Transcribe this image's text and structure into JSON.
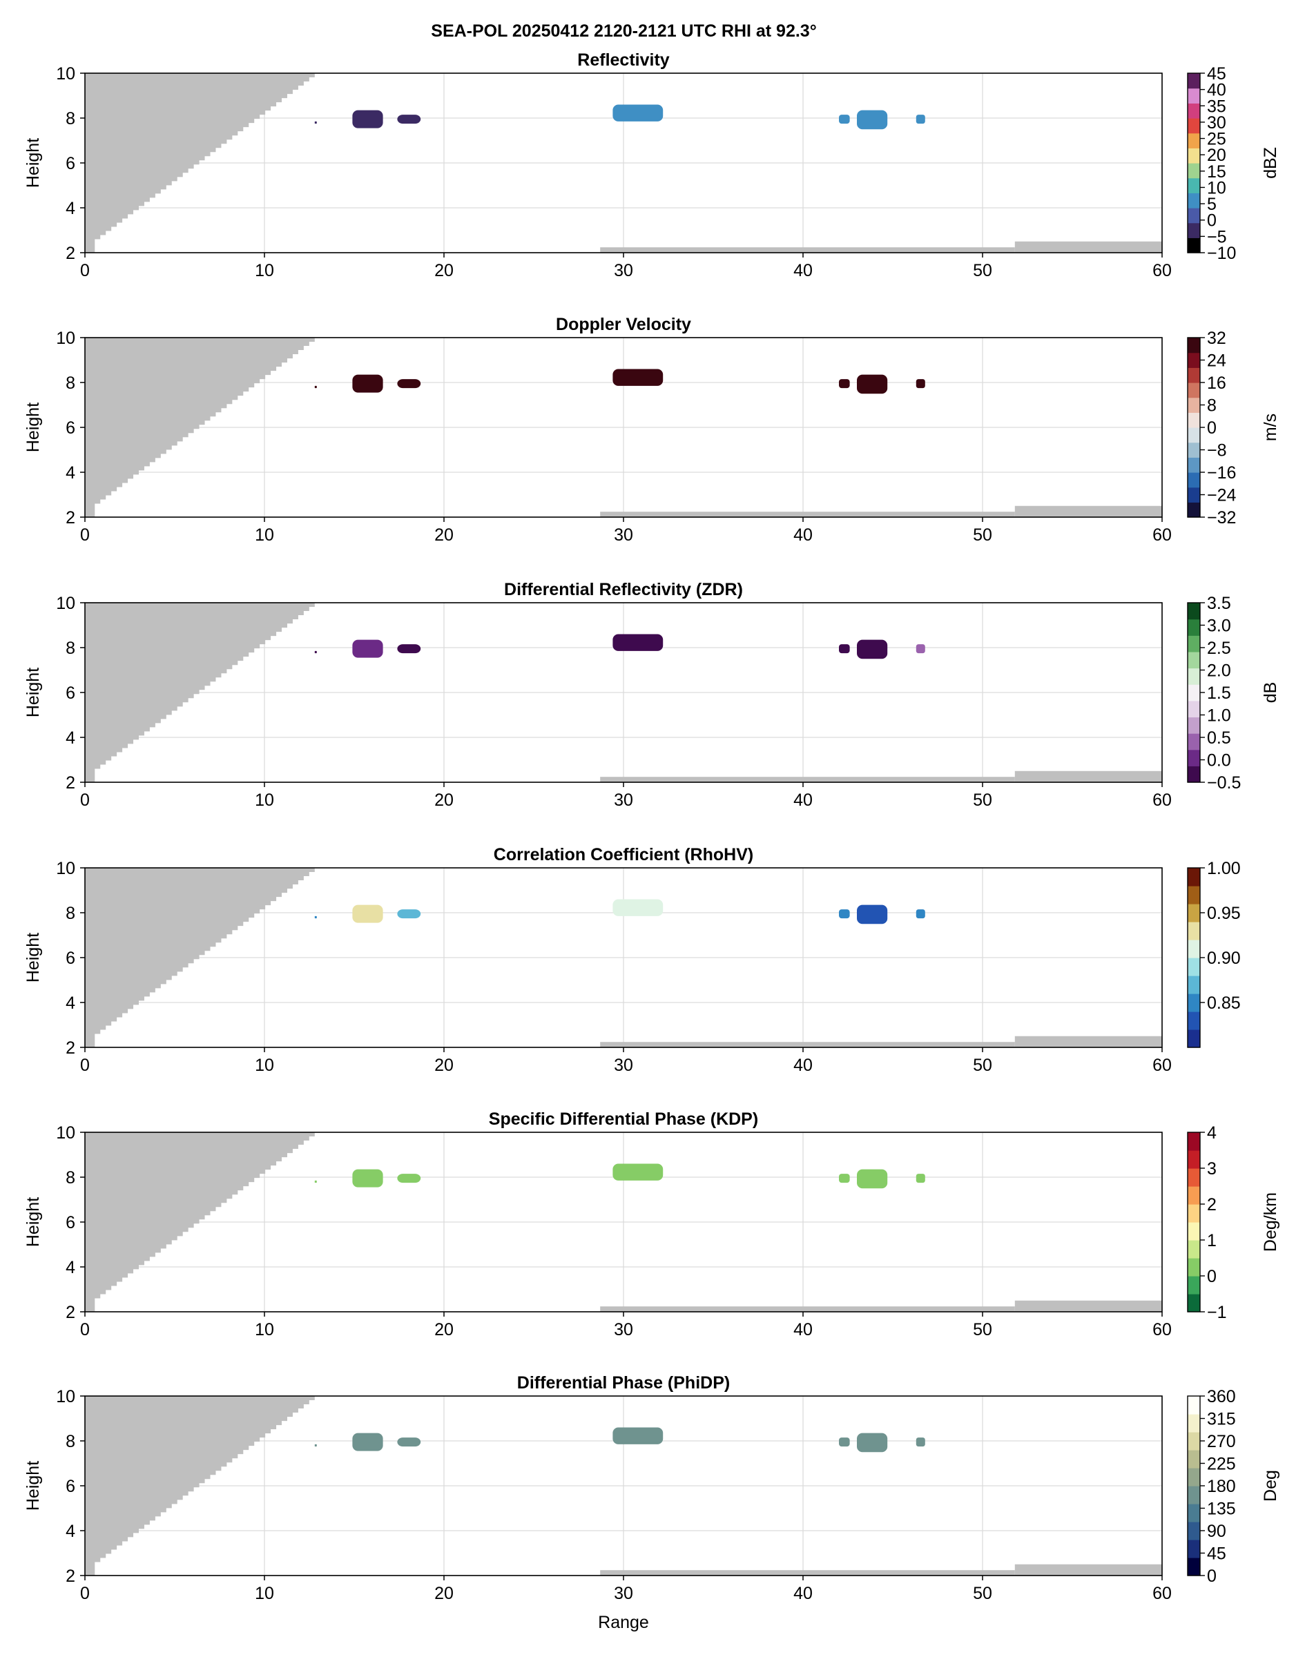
{
  "figure_title": "SEA-POL 20250412 2120-2121 UTC RHI at 92.3°",
  "colors": {
    "mask_gray": "#bfbfbf",
    "grid": "#dcdcdc",
    "axis": "#000000"
  },
  "chart_data": [
    {
      "type": "heatmap",
      "title": "Reflectivity",
      "xlabel": "",
      "ylabel": "Height",
      "xlim": [
        0,
        60
      ],
      "ylim": [
        2,
        10
      ],
      "xticks": [
        0,
        10,
        20,
        30,
        40,
        50,
        60
      ],
      "yticks": [
        2,
        4,
        6,
        8,
        10
      ],
      "grid": true,
      "colorbar": {
        "label": "dBZ",
        "range": [
          -10,
          45
        ],
        "ticks": [
          -10,
          -5,
          0,
          5,
          10,
          15,
          20,
          25,
          30,
          35,
          40,
          45
        ],
        "colormap": [
          "#000000",
          "#3b2a63",
          "#4a5aa8",
          "#3f8fc4",
          "#49b7b0",
          "#9fd38f",
          "#f3e08e",
          "#f0a44a",
          "#e0463e",
          "#d13f7e",
          "#d98bd0",
          "#5c1f5e"
        ]
      },
      "echoes": [
        {
          "range_km": [
            12.8,
            12.9
          ],
          "height_km": [
            7.75,
            7.85
          ],
          "value": -2
        },
        {
          "range_km": [
            14.9,
            16.6
          ],
          "height_km": [
            7.55,
            8.35
          ],
          "value": -1
        },
        {
          "range_km": [
            17.4,
            18.7
          ],
          "height_km": [
            7.75,
            8.15
          ],
          "value": -3
        },
        {
          "range_km": [
            29.4,
            32.2
          ],
          "height_km": [
            7.85,
            8.6
          ],
          "value": 5
        },
        {
          "range_km": [
            42.0,
            42.6
          ],
          "height_km": [
            7.75,
            8.15
          ],
          "value": 6
        },
        {
          "range_km": [
            43.0,
            44.7
          ],
          "height_km": [
            7.5,
            8.35
          ],
          "value": 5
        },
        {
          "range_km": [
            46.3,
            46.8
          ],
          "height_km": [
            7.75,
            8.15
          ],
          "value": 6
        }
      ]
    },
    {
      "type": "heatmap",
      "title": "Doppler Velocity",
      "xlabel": "",
      "ylabel": "Height",
      "xlim": [
        0,
        60
      ],
      "ylim": [
        2,
        10
      ],
      "xticks": [
        0,
        10,
        20,
        30,
        40,
        50,
        60
      ],
      "yticks": [
        2,
        4,
        6,
        8,
        10
      ],
      "grid": true,
      "colorbar": {
        "label": "m/s",
        "range": [
          -32,
          32
        ],
        "ticks": [
          -32,
          -24,
          -16,
          -8,
          0,
          8,
          16,
          24,
          32
        ],
        "colormap": [
          "#14123a",
          "#1a3d8f",
          "#2b6cb3",
          "#5d97c4",
          "#9fbfd1",
          "#d7e1e6",
          "#f0e2dc",
          "#e7b3a0",
          "#cf7560",
          "#b03a35",
          "#7a0d1e",
          "#3a0610"
        ]
      },
      "echoes": [
        {
          "range_km": [
            12.8,
            12.9
          ],
          "height_km": [
            7.75,
            7.85
          ],
          "value": 28
        },
        {
          "range_km": [
            14.9,
            16.6
          ],
          "height_km": [
            7.55,
            8.35
          ],
          "value": 28
        },
        {
          "range_km": [
            17.4,
            18.7
          ],
          "height_km": [
            7.75,
            8.15
          ],
          "value": 28
        },
        {
          "range_km": [
            29.4,
            32.2
          ],
          "height_km": [
            7.85,
            8.6
          ],
          "value": 29
        },
        {
          "range_km": [
            42.0,
            42.6
          ],
          "height_km": [
            7.75,
            8.15
          ],
          "value": 28
        },
        {
          "range_km": [
            43.0,
            44.7
          ],
          "height_km": [
            7.5,
            8.35
          ],
          "value": 29
        },
        {
          "range_km": [
            46.3,
            46.8
          ],
          "height_km": [
            7.75,
            8.15
          ],
          "value": 28
        }
      ]
    },
    {
      "type": "heatmap",
      "title": "Differential Reflectivity (ZDR)",
      "xlabel": "",
      "ylabel": "Height",
      "xlim": [
        0,
        60
      ],
      "ylim": [
        2,
        10
      ],
      "xticks": [
        0,
        10,
        20,
        30,
        40,
        50,
        60
      ],
      "yticks": [
        2,
        4,
        6,
        8,
        10
      ],
      "grid": true,
      "colorbar": {
        "label": "dB",
        "range": [
          -0.5,
          3.5
        ],
        "ticks": [
          -0.5,
          0.0,
          0.5,
          1.0,
          1.5,
          2.0,
          2.5,
          3.0,
          3.5
        ],
        "colormap": [
          "#3e0a4e",
          "#6b2a86",
          "#9a62ad",
          "#c3a0cc",
          "#e4d3e8",
          "#f5f1f5",
          "#d8eed6",
          "#a3d79d",
          "#5fae62",
          "#2a7f3b",
          "#0b4a1d"
        ]
      },
      "echoes": [
        {
          "range_km": [
            12.8,
            12.9
          ],
          "height_km": [
            7.75,
            7.85
          ],
          "value": -0.2
        },
        {
          "range_km": [
            14.9,
            16.6
          ],
          "height_km": [
            7.55,
            8.35
          ],
          "value": -0.1
        },
        {
          "range_km": [
            17.4,
            18.7
          ],
          "height_km": [
            7.75,
            8.15
          ],
          "value": -0.2
        },
        {
          "range_km": [
            29.4,
            32.2
          ],
          "height_km": [
            7.85,
            8.6
          ],
          "value": -0.2
        },
        {
          "range_km": [
            42.0,
            42.6
          ],
          "height_km": [
            7.75,
            8.15
          ],
          "value": -0.3
        },
        {
          "range_km": [
            43.0,
            44.7
          ],
          "height_km": [
            7.5,
            8.35
          ],
          "value": -0.3
        },
        {
          "range_km": [
            46.3,
            46.8
          ],
          "height_km": [
            7.75,
            8.15
          ],
          "value": 0.3
        }
      ]
    },
    {
      "type": "heatmap",
      "title": "Correlation Coefficient (RhoHV)",
      "xlabel": "",
      "ylabel": "Height",
      "xlim": [
        0,
        60
      ],
      "ylim": [
        2,
        10
      ],
      "xticks": [
        0,
        10,
        20,
        30,
        40,
        50,
        60
      ],
      "yticks": [
        2,
        4,
        6,
        8,
        10
      ],
      "grid": true,
      "colorbar": {
        "label": "",
        "range": [
          0.8,
          1.0
        ],
        "ticks": [
          0.85,
          0.9,
          0.95,
          1.0
        ],
        "colormap": [
          "#1a2f8f",
          "#2254b3",
          "#2f86c4",
          "#5cb7d6",
          "#9fe0e4",
          "#dff3e4",
          "#e8e0a4",
          "#c9a443",
          "#a05e16",
          "#6b1707"
        ]
      },
      "echoes": [
        {
          "range_km": [
            12.8,
            12.9
          ],
          "height_km": [
            7.75,
            7.85
          ],
          "value": 0.86
        },
        {
          "range_km": [
            14.9,
            16.6
          ],
          "height_km": [
            7.55,
            8.35
          ],
          "value": 0.92
        },
        {
          "range_km": [
            17.4,
            18.7
          ],
          "height_km": [
            7.75,
            8.15
          ],
          "value": 0.87
        },
        {
          "range_km": [
            29.4,
            32.2
          ],
          "height_km": [
            7.85,
            8.6
          ],
          "value": 0.9
        },
        {
          "range_km": [
            42.0,
            42.6
          ],
          "height_km": [
            7.75,
            8.15
          ],
          "value": 0.85
        },
        {
          "range_km": [
            43.0,
            44.7
          ],
          "height_km": [
            7.5,
            8.35
          ],
          "value": 0.84
        },
        {
          "range_km": [
            46.3,
            46.8
          ],
          "height_km": [
            7.75,
            8.15
          ],
          "value": 0.85
        }
      ]
    },
    {
      "type": "heatmap",
      "title": "Specific Differential Phase (KDP)",
      "xlabel": "",
      "ylabel": "Height",
      "xlim": [
        0,
        60
      ],
      "ylim": [
        2,
        10
      ],
      "xticks": [
        0,
        10,
        20,
        30,
        40,
        50,
        60
      ],
      "yticks": [
        2,
        4,
        6,
        8,
        10
      ],
      "grid": true,
      "colorbar": {
        "label": "Deg/km",
        "range": [
          -1,
          4
        ],
        "ticks": [
          -1,
          0,
          1,
          2,
          3,
          4
        ],
        "colormap": [
          "#0b6b3a",
          "#3aa65a",
          "#86cc66",
          "#c9e88a",
          "#fbf6b4",
          "#fdd383",
          "#f79d52",
          "#e75a36",
          "#c41e26",
          "#9c0824"
        ]
      },
      "echoes": [
        {
          "range_km": [
            12.8,
            12.9
          ],
          "height_km": [
            7.75,
            7.85
          ],
          "value": 0
        },
        {
          "range_km": [
            14.9,
            16.6
          ],
          "height_km": [
            7.55,
            8.35
          ],
          "value": 0
        },
        {
          "range_km": [
            17.4,
            18.7
          ],
          "height_km": [
            7.75,
            8.15
          ],
          "value": 0
        },
        {
          "range_km": [
            29.4,
            32.2
          ],
          "height_km": [
            7.85,
            8.6
          ],
          "value": 0
        },
        {
          "range_km": [
            42.0,
            42.6
          ],
          "height_km": [
            7.75,
            8.15
          ],
          "value": 0
        },
        {
          "range_km": [
            43.0,
            44.7
          ],
          "height_km": [
            7.5,
            8.35
          ],
          "value": 0
        },
        {
          "range_km": [
            46.3,
            46.8
          ],
          "height_km": [
            7.75,
            8.15
          ],
          "value": 0
        }
      ]
    },
    {
      "type": "heatmap",
      "title": "Differential Phase (PhiDP)",
      "xlabel": "Range",
      "ylabel": "Height",
      "xlim": [
        0,
        60
      ],
      "ylim": [
        2,
        10
      ],
      "xticks": [
        0,
        10,
        20,
        30,
        40,
        50,
        60
      ],
      "yticks": [
        2,
        4,
        6,
        8,
        10
      ],
      "grid": true,
      "colorbar": {
        "label": "Deg",
        "range": [
          0,
          360
        ],
        "ticks": [
          0,
          45,
          90,
          135,
          180,
          225,
          270,
          315,
          360
        ],
        "colormap": [
          "#00003c",
          "#1a2f7a",
          "#2f5a8e",
          "#4a7c92",
          "#6f938f",
          "#94a78c",
          "#b9bd90",
          "#dcd9a5",
          "#f4f1cc",
          "#fffff8"
        ]
      },
      "echoes": [
        {
          "range_km": [
            12.8,
            12.9
          ],
          "height_km": [
            7.75,
            7.85
          ],
          "value": 160
        },
        {
          "range_km": [
            14.9,
            16.6
          ],
          "height_km": [
            7.55,
            8.35
          ],
          "value": 160
        },
        {
          "range_km": [
            17.4,
            18.7
          ],
          "height_km": [
            7.75,
            8.15
          ],
          "value": 160
        },
        {
          "range_km": [
            29.4,
            32.2
          ],
          "height_km": [
            7.85,
            8.6
          ],
          "value": 160
        },
        {
          "range_km": [
            42.0,
            42.6
          ],
          "height_km": [
            7.75,
            8.15
          ],
          "value": 160
        },
        {
          "range_km": [
            43.0,
            44.7
          ],
          "height_km": [
            7.5,
            8.35
          ],
          "value": 160
        },
        {
          "range_km": [
            46.3,
            46.8
          ],
          "height_km": [
            7.75,
            8.15
          ],
          "value": 160
        }
      ]
    }
  ]
}
